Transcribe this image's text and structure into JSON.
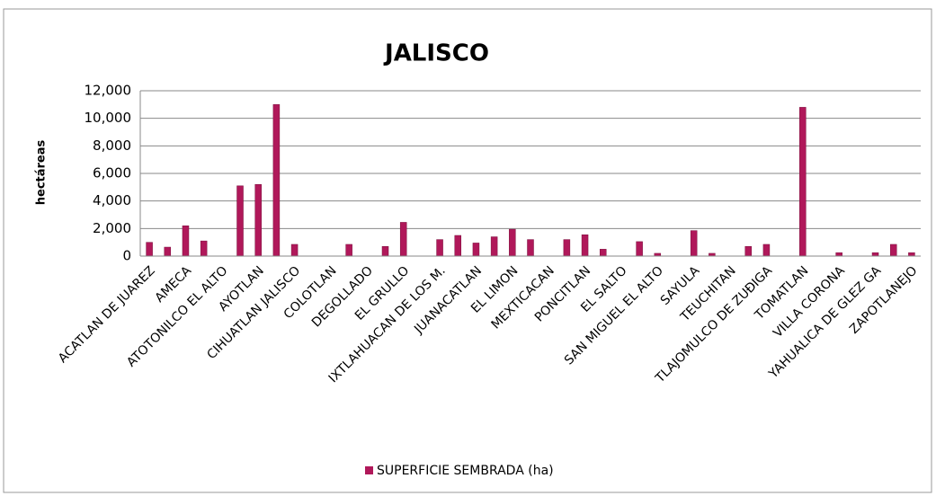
{
  "chart_data": {
    "type": "bar",
    "title": "JALISCO",
    "y_label": "hectáreas",
    "categories": [
      "ACATLAN DE JUAREZ",
      null,
      "AMECA",
      null,
      "ATOTONILCO EL ALTO",
      null,
      "AYOTLAN",
      null,
      "CIHUATLAN JALISCO",
      null,
      "COLOTLAN",
      null,
      "DEGOLLADO",
      null,
      "EL GRULLO",
      null,
      "IXTLAHUACAN DE LOS M.",
      null,
      "JUANACATLAN",
      null,
      "EL LIMON",
      null,
      "MEXTICACAN",
      null,
      "PONCITLAN",
      null,
      "EL SALTO",
      null,
      "SAN MIGUEL EL ALTO",
      null,
      "SAYULA",
      null,
      "TEUCHITAN",
      null,
      "TLAJOMULCO DE ZUÐIGA",
      null,
      "TOMATLAN",
      null,
      "VILLA CORONA",
      null,
      "YAHUALICA DE GLEZ GA",
      null,
      "ZAPOTLANEJO"
    ],
    "series": [
      {
        "name": "SUPERFICIE SEMBRADA (ha)",
        "color": "#b0185a",
        "values": [
          1000,
          650,
          2200,
          1100,
          0,
          5100,
          5200,
          11000,
          850,
          0,
          0,
          850,
          0,
          700,
          2450,
          0,
          1200,
          1500,
          950,
          1400,
          1950,
          1200,
          0,
          1200,
          1550,
          500,
          0,
          1050,
          200,
          0,
          1850,
          200,
          0,
          700,
          850,
          0,
          10800,
          0,
          250,
          0,
          250,
          850,
          250
        ]
      }
    ],
    "ylim": [
      0,
      12000
    ],
    "yticks": [
      0,
      {
        "value": 2000,
        "label": "2,000"
      },
      {
        "value": 4000,
        "label": "4,000"
      },
      {
        "value": 6000,
        "label": "6,000"
      },
      {
        "value": 8000,
        "label": "8,000"
      },
      {
        "value": 10000,
        "label": "10,000"
      },
      {
        "value": 12000,
        "label": "12,000"
      }
    ],
    "grid": true,
    "legend": "bottom"
  }
}
